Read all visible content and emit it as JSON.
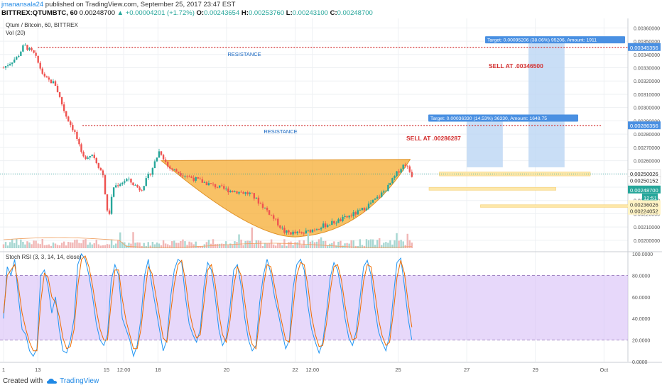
{
  "header": {
    "user": "jmanansala24",
    "published": "published on TradingView.com, September 25, 2017 23:47 EST",
    "symbol": "BITTREX:QTUMBTC, 60",
    "last": "0.00248700",
    "change": "▲ +0.00004201 (+1.72%)",
    "open_label": "O:",
    "open": "0.00243654",
    "high_label": "H:",
    "high": "0.00253760",
    "low_label": "L:",
    "low": "0.00243100",
    "close_label": "C:",
    "close": "0.00248700"
  },
  "footer": {
    "created_with": "Created with",
    "brand": "TradingView"
  },
  "colors": {
    "up": "#26a69a",
    "down": "#ef5350",
    "resistance": "#d32f2f",
    "cup": "#f5a623",
    "rsi_band": "#d7bef7",
    "rsi_k": "#2196f3",
    "rsi_d": "#ef6c00",
    "target_box": "#bbd6f4",
    "sell_box": "#fde7a8",
    "resistance_text": "#1565c0"
  },
  "chart_data": [
    {
      "type": "candlestick",
      "title": "Qtum / Bitcoin, 60, BITTREX",
      "sub_indicator": "Vol (20)",
      "ylim": [
        0.00193,
        0.00365
      ],
      "y_ticks": [
        "0.00360000",
        "0.00350000",
        "0.00340000",
        "0.00330000",
        "0.00320000",
        "0.00310000",
        "0.00300000",
        "0.00290000",
        "0.00280000",
        "0.00270000",
        "0.00260000",
        "0.00250000",
        "0.00240000",
        "0.00230000",
        "0.00220000",
        "0.00210000",
        "0.00200000"
      ],
      "x_ticks": [
        {
          "label": "1",
          "day": 0
        },
        {
          "label": "13",
          "day": 1
        },
        {
          "label": "15",
          "day": 3
        },
        {
          "label": "12:00",
          "day": 3.5
        },
        {
          "label": "18",
          "day": 4.5
        },
        {
          "label": "20",
          "day": 6.5
        },
        {
          "label": "22",
          "day": 8.5
        },
        {
          "label": "12:00",
          "day": 9
        },
        {
          "label": "25",
          "day": 11.5
        },
        {
          "label": "27",
          "day": 13.5
        },
        {
          "label": "29",
          "day": 15.5
        },
        {
          "label": "Oct",
          "day": 17.5
        }
      ],
      "price_path": [
        [
          0,
          0.0033
        ],
        [
          0.4,
          0.00338
        ],
        [
          0.6,
          0.00347
        ],
        [
          0.9,
          0.0034
        ],
        [
          1.2,
          0.00322
        ],
        [
          1.5,
          0.00318
        ],
        [
          1.8,
          0.00295
        ],
        [
          2.1,
          0.0028
        ],
        [
          2.3,
          0.00262
        ],
        [
          2.6,
          0.00265
        ],
        [
          2.9,
          0.00249
        ],
        [
          3.05,
          0.00215
        ],
        [
          3.2,
          0.0024
        ],
        [
          3.6,
          0.00246
        ],
        [
          4.0,
          0.00238
        ],
        [
          4.3,
          0.00252
        ],
        [
          4.55,
          0.00268
        ],
        [
          4.8,
          0.00255
        ],
        [
          5.2,
          0.0025
        ],
        [
          5.8,
          0.00244
        ],
        [
          6.5,
          0.00238
        ],
        [
          7.2,
          0.00235
        ],
        [
          7.7,
          0.00222
        ],
        [
          8.2,
          0.00206
        ],
        [
          8.7,
          0.00205
        ],
        [
          9.2,
          0.0021
        ],
        [
          9.8,
          0.00215
        ],
        [
          10.4,
          0.00222
        ],
        [
          10.9,
          0.00232
        ],
        [
          11.2,
          0.0024
        ],
        [
          11.5,
          0.00252
        ],
        [
          11.7,
          0.00258
        ],
        [
          11.9,
          0.00249
        ]
      ],
      "cup_formation": {
        "rim_left": {
          "day": 4.6,
          "price": 0.0026
        },
        "rim_right": {
          "day": 11.85,
          "price": 0.00261
        },
        "bottom": {
          "day": 8.7,
          "price": 0.00203
        }
      },
      "resistance_lines": [
        {
          "label": "RESISTANCE",
          "price": 0.00345356,
          "from_day": 1.0
        },
        {
          "label": "RESISTANCE",
          "price": 0.00286356,
          "from_day": 2.3
        }
      ],
      "sell_labels": [
        "SELL AT .00346500",
        "SELL AT .00286287"
      ],
      "targets": [
        {
          "text": "Target: 0.00095206 (38.06%) 95206, Amount: 1911",
          "entry": 0.00255,
          "target": 0.0035
        },
        {
          "text": "Target: 0.00036330 (14.53%) 36330, Amount: 1648.75",
          "entry": 0.00255,
          "target": 0.00291
        }
      ],
      "price_labels": [
        {
          "text": "0.00345356",
          "price": 0.00345356,
          "style": "blue"
        },
        {
          "text": "0.00286356",
          "price": 0.00286356,
          "style": "blue"
        },
        {
          "text": "0.00250026",
          "price": 0.00250026,
          "style": "white"
        },
        {
          "text": "0.00250152",
          "price": 0.00245,
          "style": "white"
        },
        {
          "text": "0.00248700",
          "price": 0.00238,
          "style": "green"
        },
        {
          "text": "12:51",
          "price": 0.00232,
          "style": "green-small"
        },
        {
          "text": "0.00236026",
          "price": 0.00227,
          "style": "yellow"
        },
        {
          "text": "0.00224052",
          "price": 0.00222,
          "style": "yellow"
        }
      ]
    },
    {
      "type": "line",
      "title": "Stoch RSI (3, 3, 14, 14, close)",
      "ylim": [
        0,
        100
      ],
      "y_ticks": [
        "100.0000",
        "80.0000",
        "60.0000",
        "40.0000",
        "20.0000",
        "0.0000"
      ],
      "band": [
        20,
        80
      ],
      "series": [
        {
          "name": "K",
          "values": [
            40,
            88,
            80,
            95,
            60,
            30,
            25,
            10,
            5,
            12,
            80,
            85,
            70,
            45,
            60,
            30,
            10,
            8,
            20,
            40,
            90,
            100,
            95,
            80,
            60,
            35,
            20,
            15,
            25,
            75,
            90,
            80,
            40,
            30,
            20,
            5,
            15,
            40,
            80,
            95,
            70,
            50,
            30,
            10,
            20,
            60,
            85,
            95,
            92,
            60,
            35,
            25,
            18,
            30,
            70,
            92,
            85,
            60,
            30,
            15,
            22,
            50,
            85,
            90,
            70,
            40,
            20,
            10,
            15,
            55,
            80,
            95,
            82,
            60,
            45,
            28,
            12,
            20,
            68,
            90,
            95,
            85,
            52,
            30,
            18,
            8,
            18,
            45,
            78,
            92,
            85,
            66,
            40,
            22,
            15,
            28,
            58,
            88,
            94,
            80,
            50,
            28,
            18,
            10,
            25,
            60,
            92,
            96,
            70,
            40,
            20
          ]
        },
        {
          "name": "D",
          "values": [
            45,
            80,
            85,
            90,
            70,
            45,
            30,
            18,
            10,
            10,
            55,
            82,
            78,
            60,
            55,
            42,
            22,
            12,
            14,
            30,
            70,
            95,
            98,
            88,
            70,
            48,
            30,
            20,
            20,
            55,
            85,
            85,
            58,
            38,
            25,
            12,
            12,
            30,
            62,
            88,
            82,
            62,
            42,
            22,
            18,
            45,
            72,
            90,
            94,
            75,
            48,
            32,
            22,
            25,
            55,
            85,
            90,
            72,
            45,
            25,
            18,
            38,
            70,
            88,
            80,
            55,
            30,
            16,
            12,
            40,
            70,
            90,
            88,
            70,
            52,
            36,
            20,
            18,
            50,
            80,
            92,
            90,
            70,
            42,
            25,
            14,
            15,
            35,
            65,
            88,
            90,
            76,
            52,
            32,
            20,
            22,
            45,
            75,
            90,
            88,
            65,
            40,
            24,
            15,
            18,
            45,
            78,
            94,
            82,
            55,
            32
          ]
        }
      ]
    }
  ]
}
